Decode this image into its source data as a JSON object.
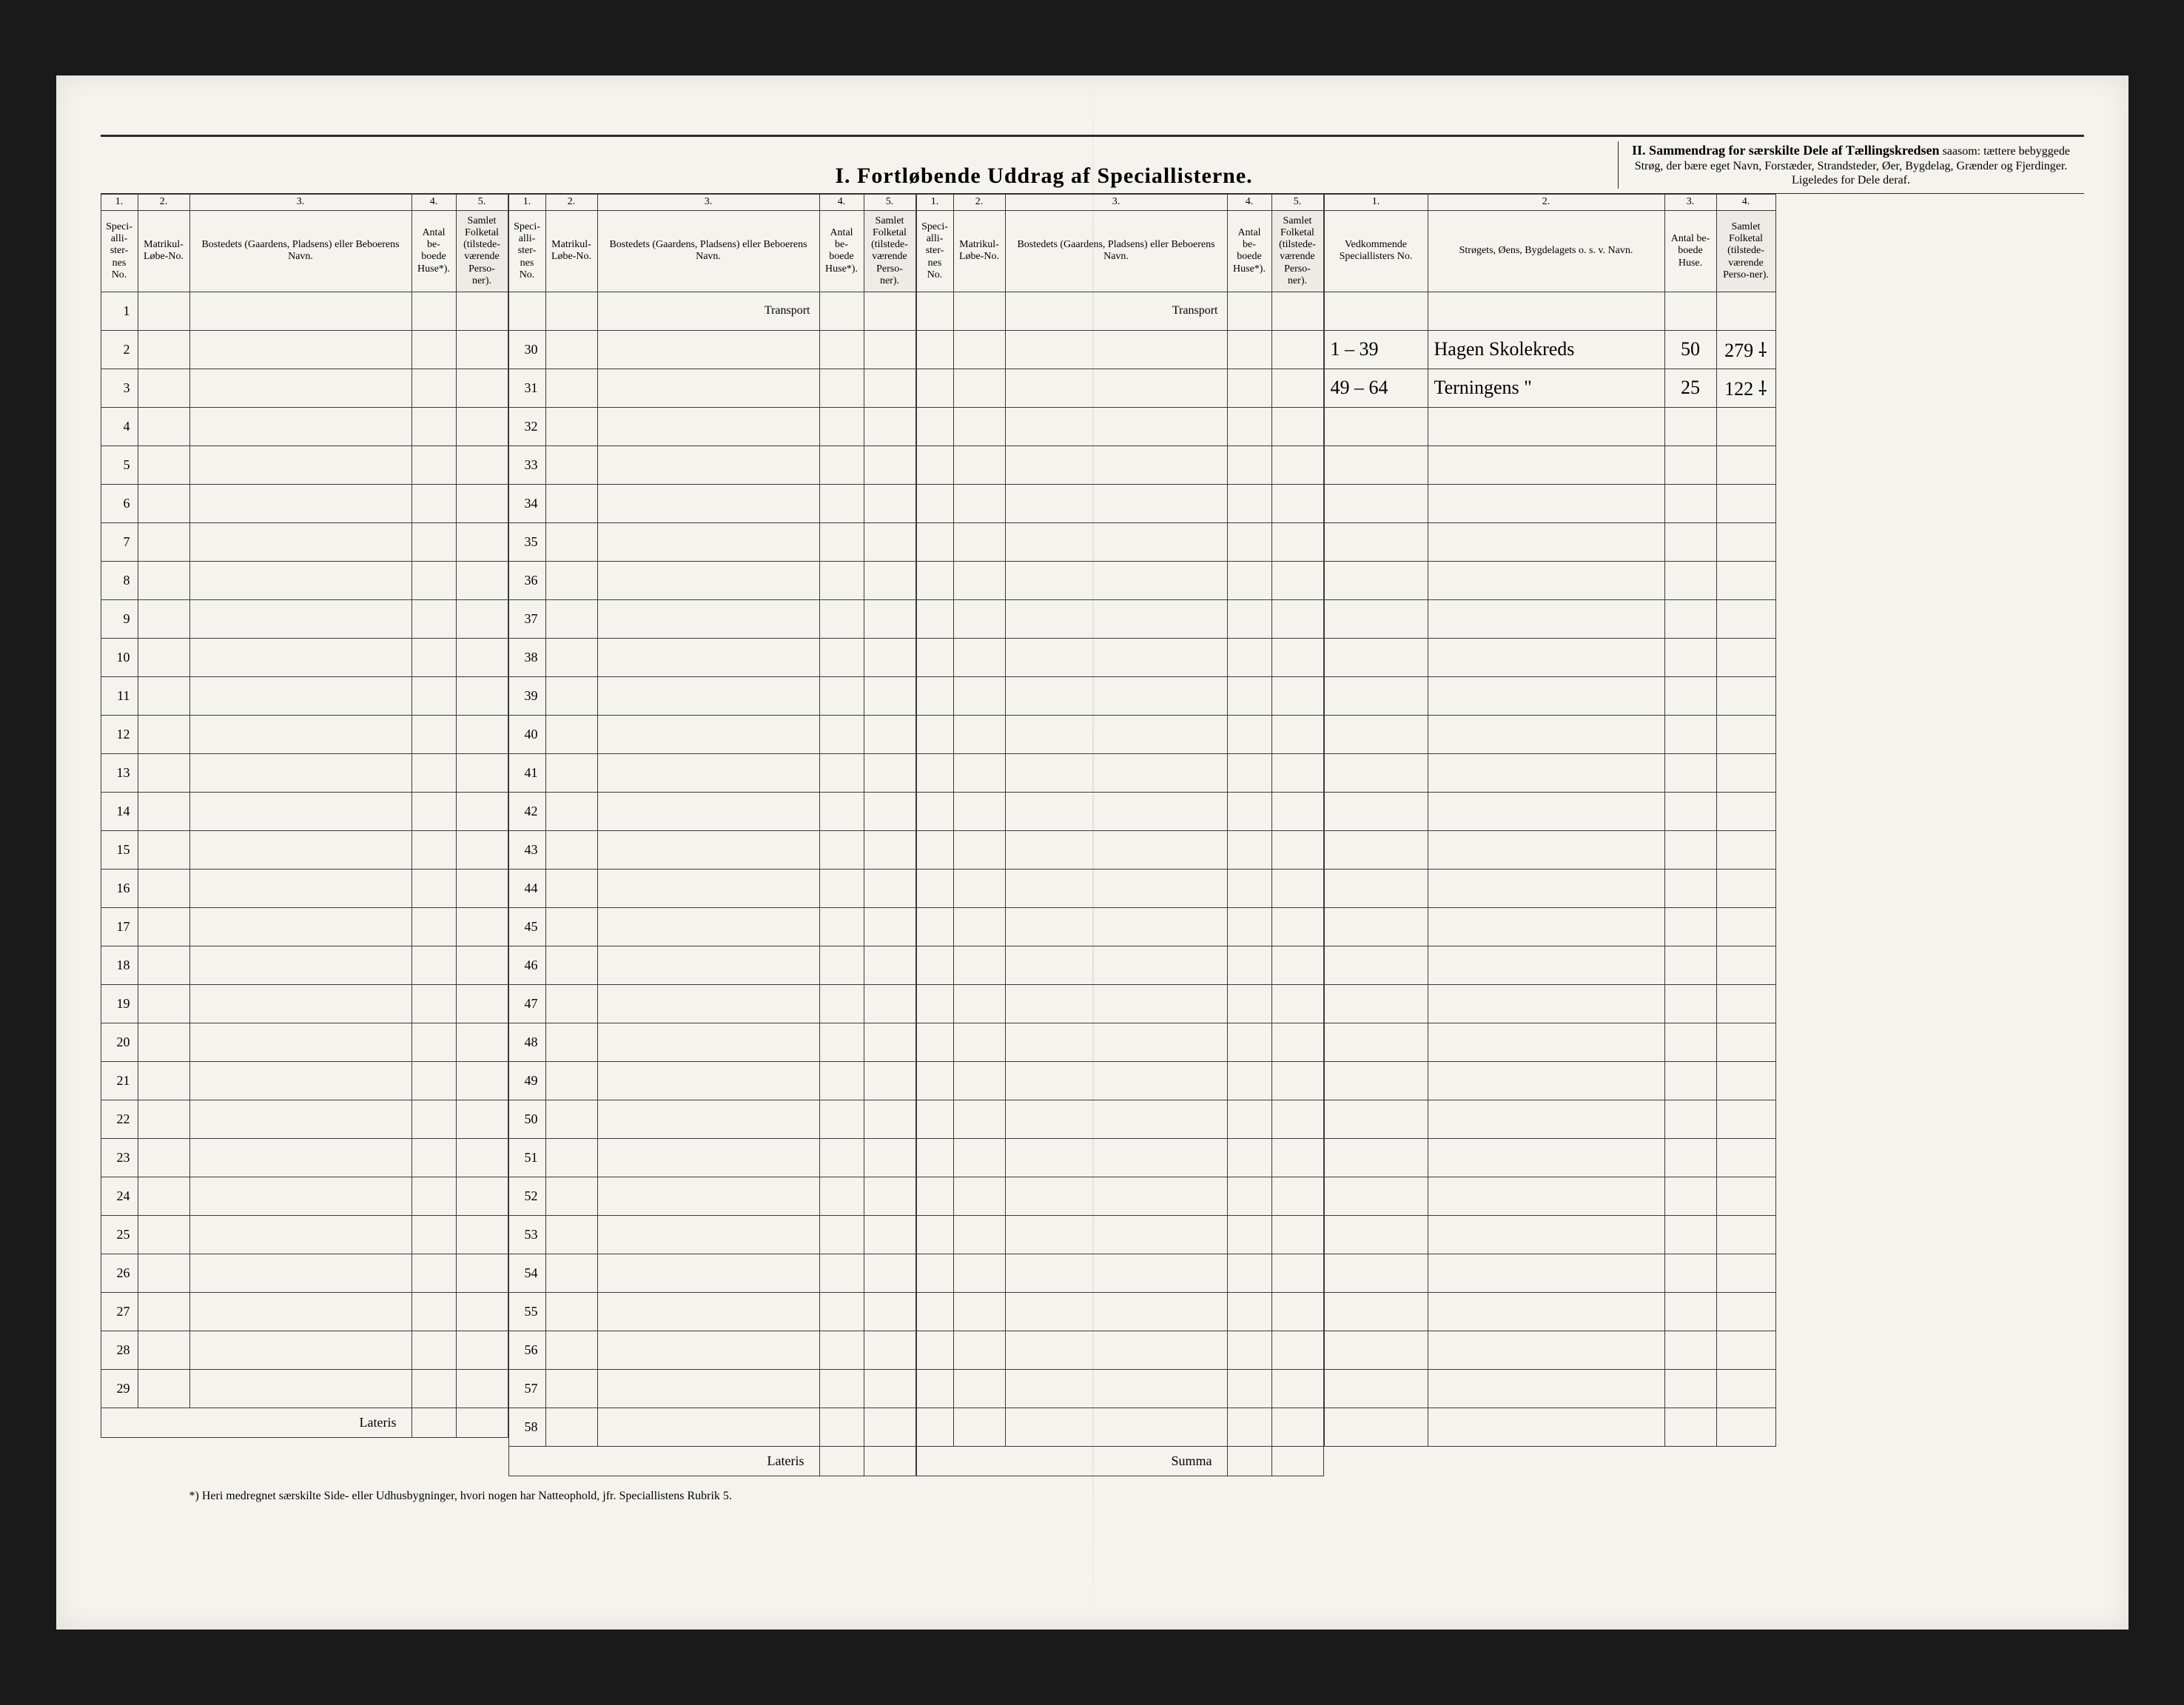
{
  "page": {
    "background": "#f5f3ed",
    "ink": "#2a2a2a"
  },
  "section1": {
    "title": "I.  Fortløbende  Uddrag  af  Speciallisterne.",
    "colnums": [
      "1.",
      "2.",
      "3.",
      "4.",
      "5."
    ],
    "headers": {
      "c1": "Speci-alli-ster-nes No.",
      "c2": "Matrikul-Løbe-No.",
      "c3": "Bostedets (Gaardens, Pladsens) eller Beboerens Navn.",
      "c4": "Antal be-boede Huse*).",
      "c5": "Samlet Folketal (tilstede-værende Perso-ner)."
    },
    "transport": "Transport",
    "rows_a": [
      "1",
      "2",
      "3",
      "4",
      "5",
      "6",
      "7",
      "8",
      "9",
      "10",
      "11",
      "12",
      "13",
      "14",
      "15",
      "16",
      "17",
      "18",
      "19",
      "20",
      "21",
      "22",
      "23",
      "24",
      "25",
      "26",
      "27",
      "28",
      "29"
    ],
    "rows_b": [
      "30",
      "31",
      "32",
      "33",
      "34",
      "35",
      "36",
      "37",
      "38",
      "39",
      "40",
      "41",
      "42",
      "43",
      "44",
      "45",
      "46",
      "47",
      "48",
      "49",
      "50",
      "51",
      "52",
      "53",
      "54",
      "55",
      "56",
      "57",
      "58"
    ],
    "lateris": "Lateris",
    "summa": "Summa"
  },
  "section2": {
    "title_lead": "II.  Sammendrag for særskilte Dele af Tællingskredsen",
    "title_rest": " saasom: tættere bebyggede Strøg, der bære eget Navn, Forstæder, Strandsteder, Øer, Bygdelag, Grænder og Fjerdinger. Ligeledes for Dele deraf.",
    "colnums": [
      "1.",
      "2.",
      "3.",
      "4."
    ],
    "headers": {
      "c1": "Vedkommende Speciallisters No.",
      "c2": "Strøgets, Øens, Bygdelagets o. s. v. Navn.",
      "c3": "Antal be-boede Huse.",
      "c4": "Samlet Folketal (tilstede-værende Perso-ner)."
    },
    "entries": [
      {
        "ref": "1 – 39",
        "name": "Hagen Skolekreds",
        "huse": "50",
        "folketal": "279  ⸸"
      },
      {
        "ref": "49 – 64",
        "name": "Terningens    \"",
        "huse": "25",
        "folketal": "122  ⸸"
      }
    ]
  },
  "footnote": "*) Heri medregnet særskilte Side- eller Udhusbygninger, hvori nogen har Natteophold, jfr. Speciallistens Rubrik 5."
}
